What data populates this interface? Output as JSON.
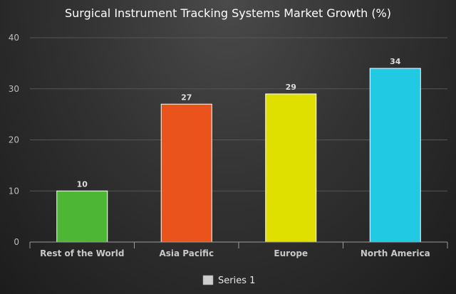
{
  "chart_data": {
    "type": "bar",
    "title": "Surgical Instrument Tracking Systems Market Growth (%)",
    "xlabel": "",
    "ylabel": "",
    "categories": [
      "Rest of the World",
      "Asia Pacific",
      "Europe",
      "North America"
    ],
    "series": [
      {
        "name": "Series 1",
        "values": [
          10,
          27,
          29,
          34
        ],
        "colors": [
          "#4db634",
          "#ea541c",
          "#dfe000",
          "#22c9e3"
        ]
      }
    ],
    "ylim": [
      0,
      40
    ],
    "yticks": [
      0,
      10,
      20,
      30,
      40
    ],
    "grid": true,
    "legend": "bottom-center",
    "legend_swatch_color": "#cccccc"
  }
}
